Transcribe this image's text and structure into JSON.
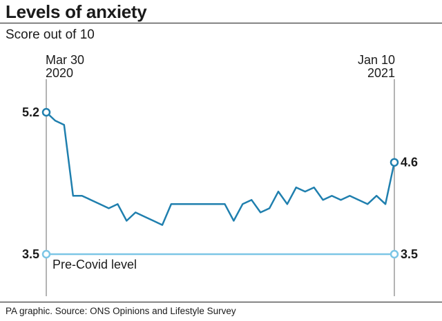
{
  "title": "Levels of anxiety",
  "subtitle": "Score out of 10",
  "footer": "PA graphic. Source: ONS Opinions and Lifestyle Survey",
  "colors": {
    "line": "#1f7fae",
    "reference": "#7cc6e6",
    "axis": "#9a9a9a",
    "text": "#1a1a1a"
  },
  "chart_data": {
    "type": "line",
    "start_label": [
      "Mar 30",
      "2020"
    ],
    "end_label": [
      "Jan 10",
      "2021"
    ],
    "ylim": [
      3.5,
      5.2
    ],
    "series": [
      {
        "values": [
          5.2,
          5.1,
          5.05,
          4.2,
          4.2,
          4.15,
          4.1,
          4.05,
          4.1,
          3.9,
          4.0,
          3.95,
          3.9,
          3.85,
          4.1,
          4.1,
          4.1,
          4.1,
          4.1,
          4.1,
          4.1,
          3.9,
          4.1,
          4.15,
          4.0,
          4.05,
          4.25,
          4.1,
          4.3,
          4.25,
          4.3,
          4.15,
          4.2,
          4.15,
          4.2,
          4.15,
          4.1,
          4.2,
          4.1,
          4.6
        ],
        "start_label": "5.2",
        "end_label": "4.6"
      }
    ],
    "reference_line": {
      "value": 3.5,
      "label": "Pre-Covid level",
      "start_label": "3.5",
      "end_label": "3.5"
    }
  }
}
